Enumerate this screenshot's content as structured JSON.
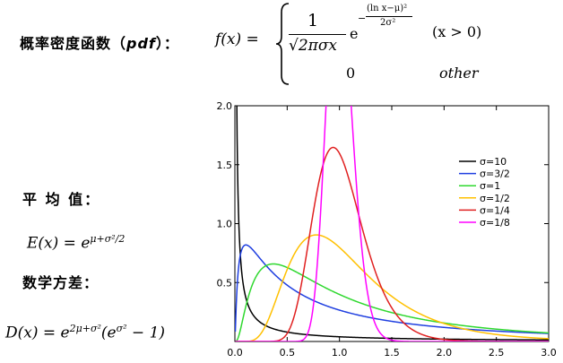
{
  "pdf_heading": {
    "text": "概率密度函数（",
    "abbr": "pdf",
    "close": "）："
  },
  "pdf_formula": {
    "lhs": "f(x) =",
    "numerator": "1",
    "denominator": "√2πσx",
    "exp_base": "e",
    "exp_sign": "−",
    "exp_numerator": "(ln x−μ)²",
    "exp_denominator": "2σ²",
    "condition": "(x > 0)",
    "otherwise_value": "0",
    "otherwise_label": "other"
  },
  "mean_heading": "平 均 值：",
  "mean_formula": {
    "lhs": "E(x) = e",
    "exponent": "μ+σ²/2"
  },
  "variance_heading": "数学方差：",
  "variance_formula": {
    "lhs": "D(x) = e",
    "exponent1": "2μ+σ²",
    "mid": "(e",
    "exponent2": "σ²",
    "tail": " − 1)"
  },
  "chart_data": {
    "type": "line",
    "title": "",
    "xlabel": "",
    "ylabel": "",
    "xlim": [
      0,
      3.0
    ],
    "ylim": [
      0,
      2.0
    ],
    "x_ticks": [
      "0.0",
      "0.5",
      "1.0",
      "1.5",
      "2.0",
      "2.5",
      "3.0"
    ],
    "y_ticks": [
      "0.5",
      "1.0",
      "1.5",
      "2.0"
    ],
    "mu": 0,
    "grid": false,
    "legend_position": "top-right",
    "series": [
      {
        "name": "σ=10",
        "sigma": 10,
        "color": "#000000"
      },
      {
        "name": "σ=3/2",
        "sigma": 1.5,
        "color": "#1f3fe0"
      },
      {
        "name": "σ=1",
        "sigma": 1.0,
        "color": "#2fd82f"
      },
      {
        "name": "σ=1/2",
        "sigma": 0.5,
        "color": "#ffc000"
      },
      {
        "name": "σ=1/4",
        "sigma": 0.25,
        "color": "#e02020"
      },
      {
        "name": "σ=1/8",
        "sigma": 0.125,
        "color": "#ff00ff"
      }
    ]
  }
}
